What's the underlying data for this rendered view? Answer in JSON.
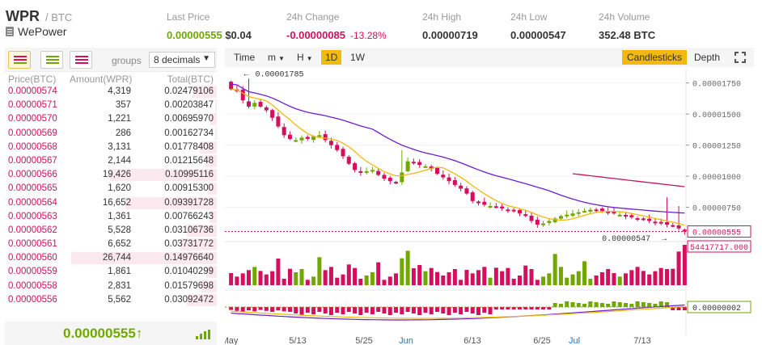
{
  "header": {
    "pair": "WPR",
    "quote": "/ BTC",
    "name": "WePower",
    "last_price": {
      "label": "Last Price",
      "value": "0.00000555",
      "usd": "$0.04"
    },
    "change": {
      "label": "24h Change",
      "value": "-0.00000085",
      "percent": "-13.28%"
    },
    "high": {
      "label": "24h High",
      "value": "0.00000719"
    },
    "low": {
      "label": "24h Low",
      "value": "0.00000547"
    },
    "volume": {
      "label": "24h Volume",
      "value": "352.48 BTC"
    }
  },
  "orderbook": {
    "groups_label": "groups",
    "groups_value": "8 decimals",
    "columns": {
      "price": "Price(BTC)",
      "amount": "Amount(WPR)",
      "total": "Total(BTC)"
    },
    "rows": [
      {
        "price": "0.00000574",
        "amount": "4,319",
        "total": "0.02479106"
      },
      {
        "price": "0.00000571",
        "amount": "357",
        "total": "0.00203847"
      },
      {
        "price": "0.00000570",
        "amount": "1,221",
        "total": "0.00695970"
      },
      {
        "price": "0.00000569",
        "amount": "286",
        "total": "0.00162734"
      },
      {
        "price": "0.00000568",
        "amount": "3,131",
        "total": "0.01778408"
      },
      {
        "price": "0.00000567",
        "amount": "2,144",
        "total": "0.01215648"
      },
      {
        "price": "0.00000566",
        "amount": "19,426",
        "total": "0.10995116"
      },
      {
        "price": "0.00000565",
        "amount": "1,620",
        "total": "0.00915300"
      },
      {
        "price": "0.00000564",
        "amount": "16,652",
        "total": "0.09391728"
      },
      {
        "price": "0.00000563",
        "amount": "1,361",
        "total": "0.00766243"
      },
      {
        "price": "0.00000562",
        "amount": "5,528",
        "total": "0.03106736"
      },
      {
        "price": "0.00000561",
        "amount": "6,652",
        "total": "0.03731772"
      },
      {
        "price": "0.00000560",
        "amount": "26,744",
        "total": "0.14976640"
      },
      {
        "price": "0.00000559",
        "amount": "1,861",
        "total": "0.01040299"
      },
      {
        "price": "0.00000558",
        "amount": "2,831",
        "total": "0.01579698"
      },
      {
        "price": "0.00000556",
        "amount": "5,562",
        "total": "0.03092472"
      }
    ],
    "last_price": "0.00000555↑"
  },
  "toolbar": {
    "time": "Time",
    "m": "m",
    "h": "H",
    "d1": "1D",
    "w1": "1W",
    "candlesticks": "Candlesticks",
    "depth": "Depth"
  },
  "chart_data": {
    "type": "candlestick",
    "y_ticks": [
      "0.00001750",
      "0.00001500",
      "0.00001250",
      "0.00001000",
      "0.00000750"
    ],
    "x_ticks": [
      "May",
      "5/13",
      "5/25",
      "Jun",
      "6/13",
      "6/25",
      "Jul",
      "7/13"
    ],
    "high_marker": "0.00001785",
    "low_marker": "0.00000547",
    "current_price": "0.00000555",
    "volume_label": "54417717.000",
    "volume_label_hidden": "54417717.00",
    "macd_label": "0.00000002",
    "closes": [
      1700,
      1690,
      1610,
      1560,
      1590,
      1560,
      1530,
      1470,
      1400,
      1330,
      1300,
      1290,
      1310,
      1300,
      1320,
      1330,
      1290,
      1250,
      1210,
      1160,
      1100,
      1050,
      1030,
      1040,
      1050,
      1010,
      980,
      960,
      950,
      1030,
      1120,
      1110,
      1090,
      1080,
      1060,
      1020,
      990,
      960,
      930,
      900,
      860,
      800,
      790,
      770,
      760,
      750,
      740,
      730,
      720,
      700,
      680,
      640,
      610,
      620,
      640,
      660,
      680,
      690,
      700,
      710,
      720,
      730,
      730,
      720,
      710,
      700,
      690,
      680,
      670,
      660,
      650,
      640,
      630,
      620,
      610,
      600,
      580,
      555
    ],
    "ma_fast_color": "#f0b90b",
    "ma_slow_color": "#6c1fd1",
    "ma_long_color": "#c2185b",
    "up_color": "#70a800",
    "down_color": "#d40f5e"
  }
}
